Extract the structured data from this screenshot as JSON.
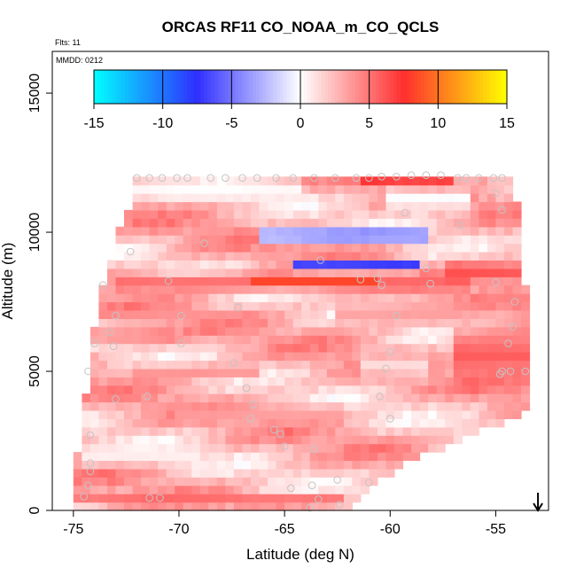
{
  "chart_data": {
    "type": "heatmap",
    "title": "ORCAS RF11 CO_NOAA_m_CO_QCLS",
    "flights_label": "Flts: 11",
    "date_label": "MMDD: 0212",
    "xlabel": "Latitude (deg N)",
    "ylabel": "Altitude (m)",
    "xlim": [
      -76,
      -52.5
    ],
    "ylim": [
      0,
      16500
    ],
    "x_ticks": [
      -75,
      -70,
      -65,
      -60,
      -55
    ],
    "y_ticks": [
      0,
      5000,
      10000,
      15000
    ],
    "grid": false,
    "colorbar": {
      "range": [
        -15,
        15
      ],
      "ticks": [
        -15,
        -10,
        -5,
        0,
        5,
        10,
        15
      ],
      "colors": [
        "#00ffff",
        "#2f2fff",
        "#ffffff",
        "#ff2f2f",
        "#ffff00"
      ],
      "position": "top"
    },
    "grid_cells": {
      "lat_step": 0.4,
      "alt_step": 300
    },
    "profile_envelope": [
      [
        -75.2,
        0
      ],
      [
        -74.6,
        3000
      ],
      [
        -74.2,
        5500
      ],
      [
        -73.8,
        7500
      ],
      [
        -73.2,
        9000
      ],
      [
        -72.8,
        10200
      ],
      [
        -72.3,
        11000
      ],
      [
        -72.0,
        11500
      ],
      [
        -72.0,
        12000
      ],
      [
        -54.2,
        12000
      ],
      [
        -53.8,
        10000
      ],
      [
        -53.6,
        8000
      ],
      [
        -53.4,
        6000
      ],
      [
        -53.2,
        4500
      ],
      [
        -53.2,
        3600
      ],
      [
        -56.5,
        2600
      ],
      [
        -59.5,
        1600
      ],
      [
        -61.5,
        500
      ],
      [
        -61.8,
        0
      ]
    ],
    "features": [
      {
        "lat_range": [
          -61.2,
          -57
        ],
        "alt": 12000,
        "thickness": 400,
        "value": 9
      },
      {
        "lat_range": [
          -66,
          -58.3
        ],
        "alt": 9900,
        "thickness": 450,
        "value": -6
      },
      {
        "lat_range": [
          -64.5,
          -58.5
        ],
        "alt": 8800,
        "thickness": 300,
        "value": -9
      },
      {
        "lat_range": [
          -73,
          -56
        ],
        "alt": 8200,
        "thickness": 500,
        "value": 5.5
      },
      {
        "lat_range": [
          -66.5,
          -60.5
        ],
        "alt": 8300,
        "thickness": 280,
        "value": 9
      },
      {
        "lat_range": [
          -57.5,
          -53.8
        ],
        "alt": 8600,
        "thickness": 600,
        "value": 6.5
      },
      {
        "lat_range": [
          -57,
          -53.3
        ],
        "alt": 5600,
        "thickness": 1600,
        "value": 6
      },
      {
        "lat_range": [
          -75,
          -62
        ],
        "alt": 500,
        "thickness": 250,
        "value": 5.5
      },
      {
        "lat_range": [
          -74,
          -70
        ],
        "alt": 6300,
        "thickness": 400,
        "value": 5
      },
      {
        "lat_range": [
          -60,
          -56
        ],
        "alt": 11200,
        "thickness": 600,
        "value": -0.5
      },
      {
        "lat_range": [
          -72,
          -64
        ],
        "alt": 11500,
        "thickness": 500,
        "value": 0
      },
      {
        "lat_range": [
          -72,
          -66
        ],
        "alt": 5000,
        "thickness": 400,
        "value": 4
      },
      {
        "lat_range": [
          -73,
          -67
        ],
        "alt": 7000,
        "thickness": 300,
        "value": 4
      },
      {
        "lat_range": [
          -70,
          -62
        ],
        "alt": 3500,
        "thickness": 500,
        "value": 3.5
      },
      {
        "lat_range": [
          -74.5,
          -69
        ],
        "alt": 2000,
        "thickness": 500,
        "value": 0.5
      },
      {
        "lat_range": [
          -62.5,
          -57
        ],
        "alt": 7100,
        "thickness": 700,
        "value": 3.5
      },
      {
        "lat_range": [
          -61.5,
          -58
        ],
        "alt": 5200,
        "thickness": 600,
        "value": 1
      }
    ],
    "observation_points": [
      [
        -72,
        11950
      ],
      [
        -71.4,
        11950
      ],
      [
        -70.8,
        11950
      ],
      [
        -70.1,
        11950
      ],
      [
        -69.6,
        11950
      ],
      [
        -68.5,
        11950
      ],
      [
        -67.8,
        11950
      ],
      [
        -67,
        11950
      ],
      [
        -66.3,
        11950
      ],
      [
        -65.4,
        11950
      ],
      [
        -64.6,
        11950
      ],
      [
        -63.6,
        11950
      ],
      [
        -62.6,
        11950
      ],
      [
        -61.6,
        11950
      ],
      [
        -61,
        11950
      ],
      [
        -60.4,
        12000
      ],
      [
        -59.7,
        12000
      ],
      [
        -59,
        12050
      ],
      [
        -58.3,
        12050
      ],
      [
        -57.6,
        12050
      ],
      [
        -56.8,
        11950
      ],
      [
        -56.4,
        11950
      ],
      [
        -55.8,
        11950
      ],
      [
        -55.1,
        11950
      ],
      [
        -54.7,
        11950
      ],
      [
        -55,
        11400
      ],
      [
        -54.7,
        10800
      ],
      [
        -59.3,
        10700
      ],
      [
        -56.7,
        10250
      ],
      [
        -68.8,
        9600
      ],
      [
        -72.3,
        9300
      ],
      [
        -63.3,
        9000
      ],
      [
        -58.3,
        8700
      ],
      [
        -58.1,
        8150
      ],
      [
        -70.5,
        8250
      ],
      [
        -61.4,
        8300
      ],
      [
        -60.6,
        8350
      ],
      [
        -60.4,
        8100
      ],
      [
        -73.6,
        8100
      ],
      [
        -67.2,
        7300
      ],
      [
        -59.7,
        7000
      ],
      [
        -60,
        5700
      ],
      [
        -60.2,
        5100
      ],
      [
        -73,
        7000
      ],
      [
        -69.9,
        7000
      ],
      [
        -73.3,
        6400
      ],
      [
        -74,
        6000
      ],
      [
        -73.1,
        5900
      ],
      [
        -69.9,
        6000
      ],
      [
        -74.3,
        5000
      ],
      [
        -67.4,
        5300
      ],
      [
        -66.8,
        4400
      ],
      [
        -66.5,
        3800
      ],
      [
        -66.6,
        3300
      ],
      [
        -65.5,
        2900
      ],
      [
        -65.2,
        2750
      ],
      [
        -65,
        2300
      ],
      [
        -63.6,
        2200
      ],
      [
        -60.5,
        4100
      ],
      [
        -60,
        3300
      ],
      [
        -71.5,
        4100
      ],
      [
        -73,
        4000
      ],
      [
        -74.2,
        2700
      ],
      [
        -74.2,
        1700
      ],
      [
        -74.2,
        1400
      ],
      [
        -74.3,
        900
      ],
      [
        -74.5,
        500
      ],
      [
        -71.4,
        450
      ],
      [
        -70.9,
        450
      ],
      [
        -64.7,
        800
      ],
      [
        -63.7,
        900
      ],
      [
        -62.5,
        1100
      ],
      [
        -61,
        1000
      ],
      [
        -63.4,
        400
      ],
      [
        -62.4,
        200
      ],
      [
        -63.8,
        100
      ],
      [
        -55,
        8200
      ],
      [
        -54.1,
        7500
      ],
      [
        -54.2,
        6600
      ],
      [
        -54.4,
        6000
      ],
      [
        -54.3,
        5000
      ],
      [
        -54.8,
        4900
      ],
      [
        -54.7,
        5000
      ],
      [
        -53.6,
        5000
      ]
    ],
    "arrow_latitude": -53
  }
}
